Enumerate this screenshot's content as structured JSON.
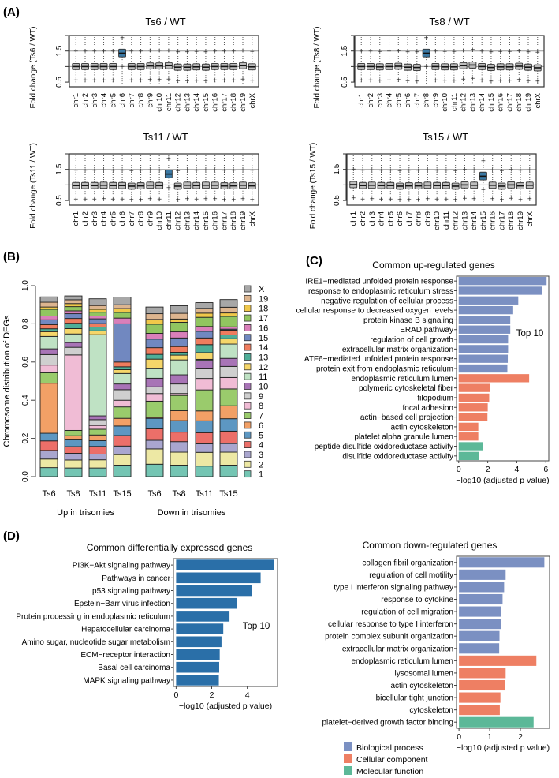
{
  "panel_labels": {
    "a": "(A)",
    "b": "(B)",
    "c": "(C)",
    "d": "(D)"
  },
  "colors": {
    "box_fill": "#bdbdbd",
    "box_highlight": "#3a78a3",
    "biological_process": "#7b90c2",
    "cellular_component": "#ee7f63",
    "molecular_function": "#5cb898",
    "kegg": "#2a6fa8"
  },
  "chart_data": [
    {
      "id": "A1",
      "type": "boxplot",
      "title": "Ts6 / WT",
      "ylabel": "Fold change (Ts6 / WT)",
      "yticks": [
        "0.5",
        "1.5"
      ],
      "ylim": [
        0.35,
        2.0
      ],
      "reference_lines": [
        1.0,
        1.5
      ],
      "categories": [
        "chr1",
        "chr2",
        "chr3",
        "chr4",
        "chr5",
        "chr6",
        "chr7",
        "chr8",
        "chr9",
        "chr10",
        "chr11",
        "chr12",
        "chr13",
        "chr14",
        "chr15",
        "chr16",
        "chr17",
        "chr18",
        "chr19",
        "chrX"
      ],
      "highlight": "chr6",
      "medians": [
        1.0,
        1.0,
        1.0,
        1.0,
        1.0,
        1.43,
        1.0,
        1.0,
        1.02,
        1.02,
        1.03,
        0.98,
        0.98,
        0.99,
        0.98,
        1.0,
        1.0,
        1.0,
        1.03,
        0.99
      ]
    },
    {
      "id": "A2",
      "type": "boxplot",
      "title": "Ts8 / WT",
      "ylabel": "Fold change (Ts8 / WT)",
      "yticks": [
        "0.5",
        "1.5"
      ],
      "ylim": [
        0.35,
        2.0
      ],
      "reference_lines": [
        1.0,
        1.5
      ],
      "categories": [
        "chr1",
        "chr2",
        "chr3",
        "chr4",
        "chr5",
        "chr6",
        "chr7",
        "chr8",
        "chr9",
        "chr10",
        "chr11",
        "chr12",
        "chr13",
        "chr14",
        "chr15",
        "chr16",
        "chr17",
        "chr18",
        "chr19",
        "chrX"
      ],
      "highlight": "chr8",
      "medians": [
        1.0,
        1.0,
        0.99,
        1.0,
        1.01,
        0.98,
        0.97,
        1.43,
        1.0,
        0.99,
        0.99,
        1.03,
        1.05,
        1.0,
        0.97,
        0.99,
        0.99,
        1.01,
        0.98,
        0.96
      ]
    },
    {
      "id": "A3",
      "type": "boxplot",
      "title": "Ts11 / WT",
      "ylabel": "Fold change (Ts11 / WT)",
      "yticks": [
        "0.5",
        "1.5"
      ],
      "ylim": [
        0.35,
        2.0
      ],
      "reference_lines": [
        1.0,
        1.5
      ],
      "categories": [
        "chr1",
        "chr2",
        "chr3",
        "chr4",
        "chr5",
        "chr6",
        "chr7",
        "chr8",
        "chr9",
        "chr10",
        "chr11",
        "chr12",
        "chr13",
        "chr14",
        "chr15",
        "chr16",
        "chr17",
        "chr18",
        "chr19",
        "chrX"
      ],
      "highlight": "chr11",
      "medians": [
        0.98,
        0.98,
        0.98,
        0.99,
        0.98,
        0.98,
        0.96,
        0.97,
        0.99,
        0.98,
        1.35,
        0.96,
        0.99,
        0.98,
        0.99,
        0.99,
        0.97,
        0.97,
        0.99,
        0.97
      ]
    },
    {
      "id": "A4",
      "type": "boxplot",
      "title": "Ts15 / WT",
      "ylabel": "Fold change (Ts15 / WT)",
      "yticks": [
        "0.5",
        "1.5"
      ],
      "ylim": [
        0.35,
        2.0
      ],
      "reference_lines": [
        1.0,
        1.5
      ],
      "categories": [
        "chr1",
        "chr2",
        "chr3",
        "chr4",
        "chr5",
        "chr6",
        "chr7",
        "chr8",
        "chr9",
        "chr10",
        "chr11",
        "chr12",
        "chr13",
        "chr14",
        "chr15",
        "chr16",
        "chr17",
        "chr18",
        "chr19",
        "chrX"
      ],
      "highlight": "chr15",
      "medians": [
        1.01,
        0.98,
        0.99,
        0.98,
        0.98,
        0.96,
        0.97,
        0.97,
        0.99,
        0.98,
        0.98,
        0.96,
        1.0,
        0.99,
        1.28,
        0.99,
        0.96,
        1.0,
        0.97,
        0.99
      ]
    },
    {
      "id": "B",
      "type": "stacked_bar",
      "ylabel": "Chromosome distribution of DEGs",
      "yticks": [
        "0.0",
        "0.2",
        "0.4",
        "0.6",
        "0.8",
        "1.0"
      ],
      "ylim": [
        0,
        1
      ],
      "categories": [
        "Ts6",
        "Ts8",
        "Ts11",
        "Ts15",
        "Ts6",
        "Ts8",
        "Ts11",
        "Ts15"
      ],
      "groups": [
        {
          "label": "Up in trisomies",
          "count": 4
        },
        {
          "label": "Down in trisomies",
          "count": 4
        }
      ],
      "legend_position": "right",
      "stack_order": [
        "1",
        "2",
        "3",
        "4",
        "5",
        "6",
        "7",
        "8",
        "9",
        "10",
        "11",
        "12",
        "13",
        "14",
        "15",
        "16",
        "17",
        "18",
        "19",
        "X"
      ],
      "legend_colors": {
        "1": "#74c5b3",
        "2": "#ede8a4",
        "3": "#a9a6cf",
        "4": "#ec6f69",
        "5": "#5d97c2",
        "6": "#f2a066",
        "7": "#9acb6c",
        "8": "#f0bcd5",
        "9": "#cfcfcf",
        "10": "#a874b6",
        "11": "#bfe2c4",
        "12": "#f5d66a",
        "13": "#4fae98",
        "14": "#ef7c5e",
        "15": "#7188c0",
        "16": "#d97fba",
        "17": "#91c560",
        "18": "#f0c84a",
        "19": "#ddb58f",
        "X": "#a7a7a7"
      },
      "series_fractions": [
        [
          0.047,
          0.045,
          0.045,
          0.06,
          0.065,
          0.06,
          0.055,
          0.06
        ],
        [
          0.045,
          0.042,
          0.043,
          0.055,
          0.08,
          0.068,
          0.072,
          0.068
        ],
        [
          0.045,
          0.035,
          0.03,
          0.045,
          0.045,
          0.055,
          0.045,
          0.045
        ],
        [
          0.05,
          0.035,
          0.04,
          0.055,
          0.06,
          0.05,
          0.058,
          0.065
        ],
        [
          0.04,
          0.035,
          0.03,
          0.05,
          0.055,
          0.06,
          0.062,
          0.065
        ],
        [
          0.262,
          0.022,
          0.03,
          0.04,
          0.005,
          0.052,
          0.052,
          0.068
        ],
        [
          0.055,
          0.028,
          0.03,
          0.06,
          0.085,
          0.08,
          0.11,
          0.088
        ],
        [
          0.04,
          0.395,
          0.02,
          0.035,
          0.04,
          0.01,
          0.06,
          0.06
        ],
        [
          0.055,
          0.04,
          0.03,
          0.055,
          0.035,
          0.05,
          0.05,
          0.058
        ],
        [
          0.03,
          0.025,
          0.02,
          0.03,
          0.045,
          0.048,
          0.045,
          0.042
        ],
        [
          0.065,
          0.045,
          0.425,
          0.055,
          0.05,
          0.078,
          0.005,
          0.075
        ],
        [
          0.025,
          0.028,
          0.02,
          0.02,
          0.05,
          0.025,
          0.035,
          0.028
        ],
        [
          0.015,
          0.028,
          0.02,
          0.015,
          0.025,
          0.015,
          0.042,
          0.02
        ],
        [
          0.022,
          0.025,
          0.018,
          0.025,
          0.035,
          0.03,
          0.035,
          0.025
        ],
        [
          0.025,
          0.025,
          0.025,
          0.2,
          0.045,
          0.045,
          0.035,
          0.005
        ],
        [
          0.02,
          0.015,
          0.015,
          0.03,
          0.03,
          0.032,
          0.025,
          0.012
        ],
        [
          0.035,
          0.022,
          0.02,
          0.03,
          0.048,
          0.05,
          0.048,
          0.055
        ],
        [
          0.012,
          0.016,
          0.015,
          0.02,
          0.025,
          0.017,
          0.022,
          0.018
        ],
        [
          0.025,
          0.02,
          0.02,
          0.02,
          0.03,
          0.03,
          0.025,
          0.03
        ],
        [
          0.028,
          0.02,
          0.035,
          0.04,
          0.035,
          0.04,
          0.03,
          0.04
        ]
      ]
    },
    {
      "id": "C",
      "type": "bar",
      "orientation": "horizontal",
      "title": "Common up-regulated genes",
      "xlabel": "−log10 (adjusted p value)",
      "xticks": [
        "0",
        "2",
        "4",
        "6"
      ],
      "xlim": [
        -0.15,
        6.2
      ],
      "annotation": "Top 10",
      "categories": [
        "IRE1−mediated unfolded protein response",
        "response to endoplasmic reticulum stress",
        "negative regulation of cellular process",
        "cellular response to decreased oxygen levels",
        "protein kinase B signaling",
        "ERAD pathway",
        "regulation of cell growth",
        "extracellular matrix organization",
        "ATF6−mediated unfolded protein response",
        "protein exit from endoplasmic reticulum",
        "endoplasmic reticulum lumen",
        "polymeric cytoskeletal fiber",
        "filopodium",
        "focal adhesion",
        "actin−based cell projection",
        "actin cytoskeleton",
        "platelet alpha granule lumen",
        "peptide disulfide oxidoreductase activity",
        "disulfide oxidoreductase activity"
      ],
      "values": [
        6.05,
        5.75,
        4.1,
        3.75,
        3.55,
        3.55,
        3.4,
        3.4,
        3.38,
        3.35,
        4.85,
        2.15,
        2.1,
        2.0,
        1.98,
        1.35,
        1.35,
        1.65,
        1.4
      ],
      "groups": [
        "biological_process",
        "biological_process",
        "biological_process",
        "biological_process",
        "biological_process",
        "biological_process",
        "biological_process",
        "biological_process",
        "biological_process",
        "biological_process",
        "cellular_component",
        "cellular_component",
        "cellular_component",
        "cellular_component",
        "cellular_component",
        "cellular_component",
        "cellular_component",
        "molecular_function",
        "molecular_function"
      ]
    },
    {
      "id": "D1",
      "type": "bar",
      "orientation": "horizontal",
      "title": "Common differentially expressed genes",
      "xlabel": "−log10 (adjusted p value)",
      "xticks": [
        "0",
        "2",
        "4"
      ],
      "xlim": [
        -0.15,
        5.7
      ],
      "annotation": "Top 10",
      "categories": [
        "PI3K−Akt signaling pathway",
        "Pathways in cancer",
        "p53 signaling pathway",
        "Epstein−Barr virus infection",
        "Protein processing in endoplasmic reticulum",
        "Hepatocellular carcinoma",
        "Amino sugar, nucleotide sugar metabolism",
        "ECM−receptor interaction",
        "Basal cell carcinoma",
        "MAPK signaling pathway"
      ],
      "values": [
        5.5,
        4.75,
        4.25,
        3.4,
        3.0,
        2.65,
        2.55,
        2.45,
        2.42,
        2.4
      ],
      "groups": [
        "kegg",
        "kegg",
        "kegg",
        "kegg",
        "kegg",
        "kegg",
        "kegg",
        "kegg",
        "kegg",
        "kegg"
      ]
    },
    {
      "id": "D2",
      "type": "bar",
      "orientation": "horizontal",
      "title": "Common down-regulated genes",
      "xlabel": "−log10 (adjusted p value)",
      "xticks": [
        "0",
        "1",
        "2"
      ],
      "xlim": [
        -0.08,
        2.95
      ],
      "categories": [
        "collagen fibril organization",
        "regulation of cell motility",
        "type I interferon signaling pathway",
        "response to cytokine",
        "regulation of cell migration",
        "cellular response to type I interferon",
        "protein complex subunit organization",
        "extracellular matrix organization",
        "endoplasmic reticulum lumen",
        "lysosomal lumen",
        "actin cytoskeleton",
        "bicellular tight junction",
        "cytoskeleton",
        "platelet−derived growth factor binding"
      ],
      "values": [
        2.78,
        1.52,
        1.47,
        1.42,
        1.38,
        1.37,
        1.32,
        1.31,
        2.52,
        1.52,
        1.51,
        1.35,
        1.33,
        2.43
      ],
      "groups": [
        "biological_process",
        "biological_process",
        "biological_process",
        "biological_process",
        "biological_process",
        "biological_process",
        "biological_process",
        "biological_process",
        "cellular_component",
        "cellular_component",
        "cellular_component",
        "cellular_component",
        "cellular_component",
        "molecular_function"
      ],
      "legend": [
        {
          "key": "biological_process",
          "label": "Biological process"
        },
        {
          "key": "cellular_component",
          "label": "Cellular component"
        },
        {
          "key": "molecular_function",
          "label": "Molecular function"
        }
      ]
    }
  ]
}
